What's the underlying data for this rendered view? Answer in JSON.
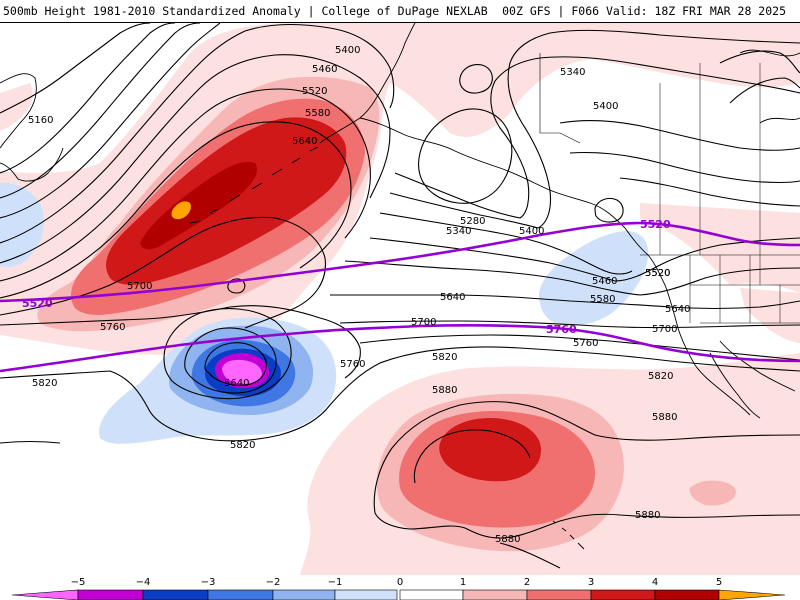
{
  "header": {
    "left": "500mb Height 1981-2010 Standardized Anomaly | College of DuPage NEXLAB",
    "right": "00Z GFS | F066 Valid: 18Z FRI MAR 28 2025"
  },
  "colors": {
    "neg_4": "#c100d6",
    "neg_3": "#0b3dc4",
    "neg_2": "#3f78e2",
    "neg_1": "#8fb4f0",
    "neg_0": "#cfe1fa",
    "pos_0": "#fde0e0",
    "pos_1": "#f7b7b7",
    "pos_2": "#f07070",
    "pos_3": "#d01818",
    "pos_4": "#b00000",
    "pos_5": "#ffa500",
    "neg_5": "#ff66ff",
    "climo_line": "#9400d3"
  },
  "height_contour_labels": [
    "5400",
    "5340",
    "5460",
    "5520",
    "5580",
    "5640",
    "5160",
    "5400",
    "5280",
    "5340",
    "5400",
    "5520",
    "5700",
    "5460",
    "5580",
    "5640",
    "5520",
    "5640",
    "5700",
    "5700",
    "5760",
    "5760",
    "5820",
    "5820",
    "5640",
    "5760",
    "5880",
    "5880",
    "5880",
    "5880",
    "5820"
  ],
  "climatology_labels": [
    "5520",
    "5520",
    "5760"
  ],
  "legend": {
    "ticks": [
      "−5",
      "−4",
      "−3",
      "−2",
      "−1",
      "0",
      "1",
      "2",
      "3",
      "4",
      "5"
    ]
  }
}
